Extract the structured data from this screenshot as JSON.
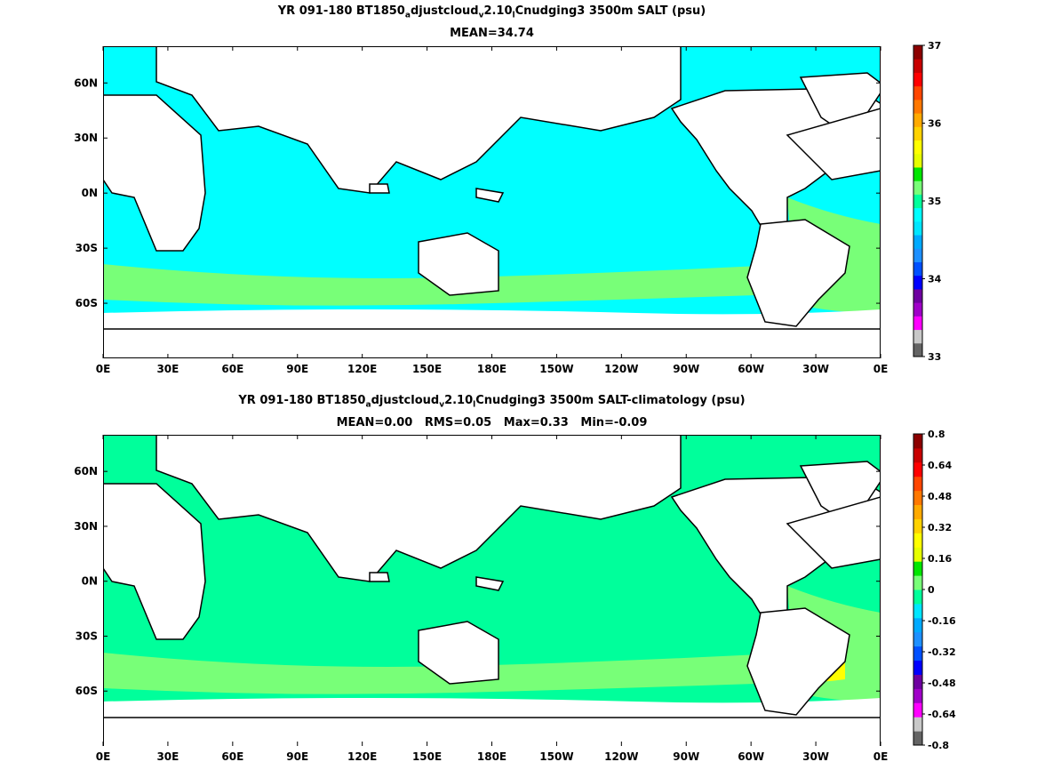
{
  "chart_data": [
    {
      "type": "heatmap",
      "title_parts": [
        "YR 091-180 BT1850",
        "a",
        "djustcloud",
        "v",
        "2.10",
        "l",
        "Cnudging3 3500m SALT (psu)"
      ],
      "stats": "MEAN=34.74",
      "x_ticks": [
        "0E",
        "30E",
        "60E",
        "90E",
        "120E",
        "150E",
        "180E",
        "150W",
        "120W",
        "90W",
        "60W",
        "30W",
        "0E"
      ],
      "y_ticks": [
        "60N",
        "30N",
        "0N",
        "30S",
        "60S"
      ],
      "colorbar": {
        "ticks": [
          "37",
          "36",
          "35",
          "34",
          "33"
        ],
        "range": [
          33,
          37
        ],
        "colors": [
          "#646464",
          "#c8c8c8",
          "#ff00ff",
          "#a000c8",
          "#6e00a0",
          "#0000ff",
          "#0050ff",
          "#1e90ff",
          "#00aaff",
          "#00e6ff",
          "#00ffff",
          "#00ff9b",
          "#78ff78",
          "#00e600",
          "#e6ff00",
          "#ffff00",
          "#ffd200",
          "#ffaa00",
          "#ff7800",
          "#ff4600",
          "#ff0000",
          "#c80000",
          "#8c0000"
        ]
      },
      "ocean_colors": {
        "base": "#00ffff",
        "alt": "#78ff78",
        "highlight": "#00e600"
      }
    },
    {
      "type": "heatmap",
      "title_parts": [
        "YR 091-180 BT1850",
        "a",
        "djustcloud",
        "v",
        "2.10",
        "l",
        "Cnudging3 3500m SALT-climatology (psu)"
      ],
      "stats": "MEAN=0.00   RMS=0.05   Max=0.33   Min=-0.09",
      "x_ticks": [
        "0E",
        "30E",
        "60E",
        "90E",
        "120E",
        "150E",
        "180E",
        "150W",
        "120W",
        "90W",
        "60W",
        "30W",
        "0E"
      ],
      "y_ticks": [
        "60N",
        "30N",
        "0N",
        "30S",
        "60S"
      ],
      "colorbar": {
        "ticks": [
          "0.8",
          "0.64",
          "0.48",
          "0.32",
          "0.16",
          "0",
          "-0.16",
          "-0.32",
          "-0.48",
          "-0.64",
          "-0.8"
        ],
        "range": [
          -0.8,
          0.8
        ],
        "colors": [
          "#646464",
          "#c8c8c8",
          "#ff00ff",
          "#a000c8",
          "#6e00a0",
          "#0000ff",
          "#0050ff",
          "#1e90ff",
          "#00aaff",
          "#00e6ff",
          "#00ff9b",
          "#78ff78",
          "#00e600",
          "#e6ff00",
          "#ffff00",
          "#ffd200",
          "#ffaa00",
          "#ff7800",
          "#ff4600",
          "#ff0000",
          "#c80000",
          "#8c0000"
        ]
      },
      "ocean_colors": {
        "base": "#00ff9b",
        "alt": "#78ff78",
        "highlight": "#ffff00"
      }
    }
  ]
}
